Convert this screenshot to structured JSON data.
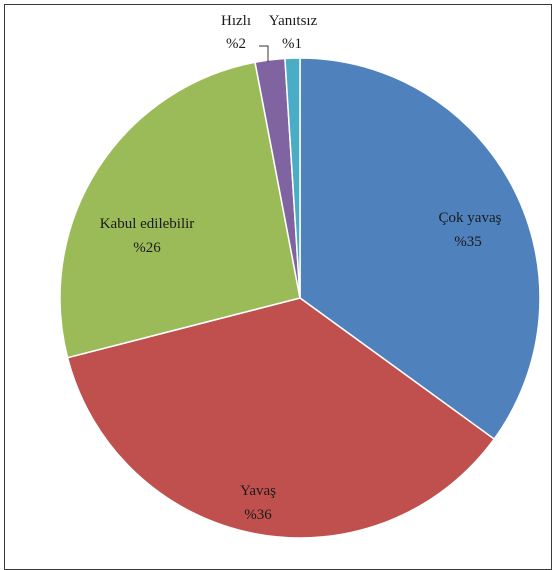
{
  "chart_data": {
    "type": "pie",
    "title": "",
    "slices": [
      {
        "name": "Çok yavaş",
        "value": 35,
        "label": "%35",
        "color": "#4F81BD"
      },
      {
        "name": "Yavaş",
        "value": 36,
        "label": "%36",
        "color": "#C0504D"
      },
      {
        "name": "Kabul edilebilir",
        "value": 26,
        "label": "%26",
        "color": "#9BBB59"
      },
      {
        "name": "Hızlı",
        "value": 2,
        "label": "%2",
        "color": "#8064A2"
      },
      {
        "name": "Yanıtsız",
        "value": 1,
        "label": "%1",
        "color": "#4BACC6"
      }
    ],
    "legend": "none",
    "start": "top, clockwise"
  }
}
